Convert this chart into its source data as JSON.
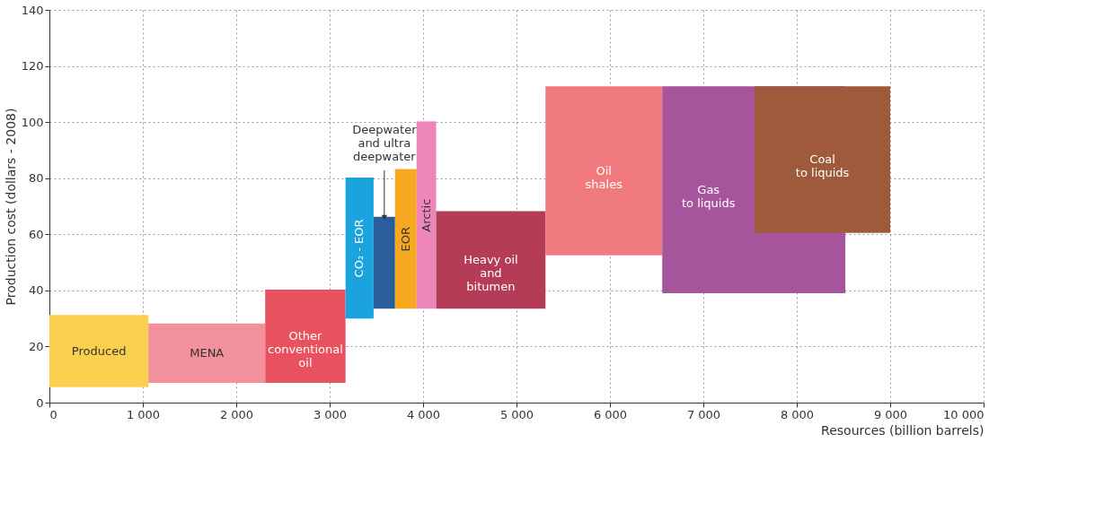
{
  "chart_data": {
    "type": "bar",
    "xlabel": "Resources (billion barrels)",
    "ylabel": "Production cost (dollars - 2008)",
    "xlim": [
      0,
      10000
    ],
    "ylim": [
      0,
      140
    ],
    "xticks": [
      0,
      {
        "value": 1000,
        "label": "1 000"
      },
      {
        "value": 2000,
        "label": "2 000"
      },
      {
        "value": 3000,
        "label": "3 000"
      },
      {
        "value": 4000,
        "label": "4 000"
      },
      {
        "value": 5000,
        "label": "5 000"
      },
      {
        "value": 6000,
        "label": "6 000"
      },
      {
        "value": 7000,
        "label": "7 000"
      },
      {
        "value": 8000,
        "label": "8 000"
      },
      {
        "value": 9000,
        "label": "9 000"
      },
      {
        "value": 10000,
        "label": "10 000"
      }
    ],
    "yticks": [
      0,
      20,
      40,
      60,
      80,
      100,
      120,
      140
    ],
    "grid": true,
    "line_style": "dotted",
    "series": [
      {
        "name": "Produced",
        "color": "#fcd04f",
        "x": [
          530
        ],
        "xerrors": [
          [
            0,
            1060
          ]
        ],
        "base": [
          5.5
        ],
        "values": [
          25.5
        ]
      },
      {
        "name": "MENA",
        "color": "#f2909c",
        "x": [
          1685
        ],
        "xerrors": [
          [
            1060,
            2310
          ]
        ],
        "base": [
          7
        ],
        "values": [
          21
        ]
      },
      {
        "name": "Other\nconventional\noil",
        "color": "#e8515f",
        "x": [
          2740
        ],
        "xerrors": [
          [
            2310,
            3170
          ]
        ],
        "base": [
          7
        ],
        "values": [
          33
        ]
      },
      {
        "name": "CO₂ - EOR",
        "color": "#1aa3dd",
        "x": [
          3320
        ],
        "xerrors": [
          [
            3170,
            3470
          ]
        ],
        "base": [
          30
        ],
        "values": [
          50
        ]
      },
      {
        "color": "#2a5d9b",
        "x": [
          3585
        ],
        "xerrors": [
          [
            3470,
            3700
          ]
        ],
        "base": [
          33.5
        ],
        "values": [
          32.5
        ]
      },
      {
        "name": "EOR",
        "color": "#f6a81e",
        "x": [
          3815
        ],
        "xerrors": [
          [
            3700,
            3930
          ]
        ],
        "base": [
          33.5
        ],
        "values": [
          49.5
        ]
      },
      {
        "name": "Arctic",
        "color": "#ee86b9",
        "x": [
          4035
        ],
        "xerrors": [
          [
            3930,
            4140
          ]
        ],
        "base": [
          33.5
        ],
        "values": [
          66.5
        ]
      },
      {
        "name": "Heavy oil\nand\nbitumen",
        "color": "#b43c56",
        "x": [
          4725
        ],
        "xerrors": [
          [
            4140,
            5310
          ]
        ],
        "base": [
          33.5
        ],
        "values": [
          34.5
        ]
      },
      {
        "name": "Oil\nshales",
        "color": "#f07a7d",
        "x": [
          5935
        ],
        "xerrors": [
          [
            5310,
            6560
          ]
        ],
        "base": [
          52.5
        ],
        "values": [
          60
        ]
      },
      {
        "name": "Gas\nto liquids",
        "color": "#a6559c",
        "x": [
          7540
        ],
        "xerrors": [
          [
            6560,
            8520
          ]
        ],
        "base": [
          39
        ],
        "values": [
          73.5
        ]
      },
      {
        "name": "Coal\nto liquids",
        "color": "#9e5a3a",
        "x": [
          8275
        ],
        "xerrors": [
          [
            7550,
            9000
          ]
        ],
        "base": [
          60.5
        ],
        "values": [
          52
        ]
      }
    ],
    "annotations": [
      {
        "text": "Deepwater\nand ultra\ndeepwater",
        "x": 3585,
        "y": 66
      }
    ]
  }
}
